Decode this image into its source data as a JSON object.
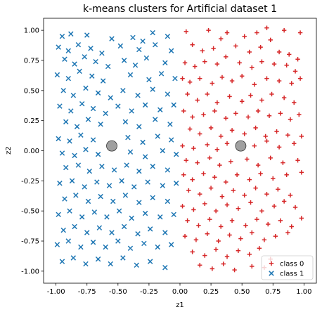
{
  "chart_data": {
    "type": "scatter",
    "title": "k-means clusters for Artificial dataset 1",
    "xlabel": "z1",
    "ylabel": "z2",
    "xlim": [
      -1.1,
      1.1
    ],
    "ylim": [
      -1.1,
      1.1
    ],
    "xticks": [
      "-1.00",
      "-0.75",
      "-0.50",
      "-0.25",
      "0.00",
      "0.25",
      "0.50",
      "0.75",
      "1.00"
    ],
    "yticks": [
      "1.00",
      "0.75",
      "0.50",
      "0.25",
      "0.00",
      "-0.25",
      "-0.50",
      "-0.75",
      "-1.00"
    ],
    "grid": false,
    "legend_position": "lower-right",
    "series": [
      {
        "name": "class 0",
        "marker": "plus",
        "color": "#d62728",
        "points": [
          [
            0.05,
            0.99
          ],
          [
            0.23,
            1.0
          ],
          [
            0.38,
            0.98
          ],
          [
            0.52,
            0.95
          ],
          [
            0.62,
            0.98
          ],
          [
            0.7,
            1.02
          ],
          [
            0.84,
            1.0
          ],
          [
            0.97,
            0.98
          ],
          [
            0.1,
            0.88
          ],
          [
            0.18,
            0.83
          ],
          [
            0.27,
            0.85
          ],
          [
            0.33,
            0.93
          ],
          [
            0.45,
            0.87
          ],
          [
            0.56,
            0.82
          ],
          [
            0.65,
            0.86
          ],
          [
            0.73,
            0.92
          ],
          [
            0.8,
            0.82
          ],
          [
            0.88,
            0.8
          ],
          [
            0.95,
            0.76
          ],
          [
            0.04,
            0.73
          ],
          [
            0.12,
            0.7
          ],
          [
            0.2,
            0.74
          ],
          [
            0.3,
            0.72
          ],
          [
            0.37,
            0.78
          ],
          [
            0.48,
            0.73
          ],
          [
            0.58,
            0.69
          ],
          [
            0.66,
            0.74
          ],
          [
            0.76,
            0.72
          ],
          [
            0.86,
            0.71
          ],
          [
            0.93,
            0.66
          ],
          [
            0.02,
            0.6
          ],
          [
            0.08,
            0.57
          ],
          [
            0.16,
            0.6
          ],
          [
            0.26,
            0.56
          ],
          [
            0.34,
            0.61
          ],
          [
            0.42,
            0.58
          ],
          [
            0.5,
            0.62
          ],
          [
            0.6,
            0.55
          ],
          [
            0.7,
            0.6
          ],
          [
            0.8,
            0.58
          ],
          [
            0.9,
            0.56
          ],
          [
            0.97,
            0.6
          ],
          [
            0.06,
            0.47
          ],
          [
            0.14,
            0.42
          ],
          [
            0.22,
            0.47
          ],
          [
            0.3,
            0.4
          ],
          [
            0.4,
            0.45
          ],
          [
            0.5,
            0.41
          ],
          [
            0.57,
            0.46
          ],
          [
            0.66,
            0.42
          ],
          [
            0.74,
            0.47
          ],
          [
            0.84,
            0.44
          ],
          [
            0.92,
            0.4
          ],
          [
            0.03,
            0.33
          ],
          [
            0.1,
            0.28
          ],
          [
            0.19,
            0.3
          ],
          [
            0.28,
            0.33
          ],
          [
            0.37,
            0.27
          ],
          [
            0.45,
            0.31
          ],
          [
            0.55,
            0.28
          ],
          [
            0.63,
            0.33
          ],
          [
            0.72,
            0.29
          ],
          [
            0.81,
            0.31
          ],
          [
            0.89,
            0.26
          ],
          [
            0.96,
            0.3
          ],
          [
            0.08,
            0.18
          ],
          [
            0.16,
            0.14
          ],
          [
            0.25,
            0.19
          ],
          [
            0.33,
            0.12
          ],
          [
            0.42,
            0.17
          ],
          [
            0.52,
            0.14
          ],
          [
            0.61,
            0.19
          ],
          [
            0.69,
            0.12
          ],
          [
            0.78,
            0.16
          ],
          [
            0.87,
            0.13
          ],
          [
            0.98,
            0.12
          ],
          [
            0.02,
            0.04
          ],
          [
            0.11,
            0.02
          ],
          [
            0.22,
            0.05
          ],
          [
            0.3,
            0.01
          ],
          [
            0.38,
            0.06
          ],
          [
            0.6,
            0.04
          ],
          [
            0.7,
            0.08
          ],
          [
            0.8,
            0.03
          ],
          [
            0.92,
            0.06
          ],
          [
            0.05,
            -0.08
          ],
          [
            0.14,
            -0.1
          ],
          [
            0.24,
            -0.06
          ],
          [
            0.32,
            -0.12
          ],
          [
            0.41,
            -0.09
          ],
          [
            0.54,
            -0.07
          ],
          [
            0.63,
            -0.12
          ],
          [
            0.73,
            -0.06
          ],
          [
            0.83,
            -0.1
          ],
          [
            0.95,
            -0.08
          ],
          [
            0.03,
            -0.2
          ],
          [
            0.1,
            -0.24
          ],
          [
            0.19,
            -0.19
          ],
          [
            0.28,
            -0.22
          ],
          [
            0.37,
            -0.26
          ],
          [
            0.46,
            -0.2
          ],
          [
            0.56,
            -0.24
          ],
          [
            0.65,
            -0.19
          ],
          [
            0.75,
            -0.23
          ],
          [
            0.86,
            -0.2
          ],
          [
            0.98,
            -0.18
          ],
          [
            0.07,
            -0.33
          ],
          [
            0.16,
            -0.36
          ],
          [
            0.25,
            -0.31
          ],
          [
            0.34,
            -0.38
          ],
          [
            0.43,
            -0.33
          ],
          [
            0.52,
            -0.37
          ],
          [
            0.61,
            -0.31
          ],
          [
            0.7,
            -0.36
          ],
          [
            0.79,
            -0.32
          ],
          [
            0.89,
            -0.37
          ],
          [
            0.02,
            -0.46
          ],
          [
            0.11,
            -0.49
          ],
          [
            0.2,
            -0.44
          ],
          [
            0.29,
            -0.5
          ],
          [
            0.38,
            -0.45
          ],
          [
            0.47,
            -0.48
          ],
          [
            0.57,
            -0.43
          ],
          [
            0.66,
            -0.5
          ],
          [
            0.76,
            -0.46
          ],
          [
            0.84,
            -0.42
          ],
          [
            0.93,
            -0.47
          ],
          [
            0.06,
            -0.58
          ],
          [
            0.15,
            -0.62
          ],
          [
            0.24,
            -0.57
          ],
          [
            0.33,
            -0.63
          ],
          [
            0.42,
            -0.58
          ],
          [
            0.53,
            -0.62
          ],
          [
            0.62,
            -0.57
          ],
          [
            0.71,
            -0.61
          ],
          [
            0.81,
            -0.58
          ],
          [
            0.9,
            -0.63
          ],
          [
            0.98,
            -0.56
          ],
          [
            0.04,
            -0.71
          ],
          [
            0.13,
            -0.74
          ],
          [
            0.22,
            -0.69
          ],
          [
            0.31,
            -0.75
          ],
          [
            0.4,
            -0.7
          ],
          [
            0.49,
            -0.73
          ],
          [
            0.58,
            -0.68
          ],
          [
            0.68,
            -0.74
          ],
          [
            0.77,
            -0.71
          ],
          [
            0.87,
            -0.68
          ],
          [
            0.1,
            -0.84
          ],
          [
            0.2,
            -0.87
          ],
          [
            0.29,
            -0.82
          ],
          [
            0.38,
            -0.88
          ],
          [
            0.47,
            -0.83
          ],
          [
            0.56,
            -0.86
          ],
          [
            0.64,
            -0.81
          ],
          [
            0.73,
            -0.9
          ],
          [
            0.16,
            -0.95
          ],
          [
            0.26,
            -0.98
          ],
          [
            0.35,
            -0.94
          ],
          [
            0.44,
            -0.99
          ],
          [
            0.58,
            -0.96
          ],
          [
            0.68,
            -0.97
          ]
        ]
      },
      {
        "name": "class 1",
        "marker": "x",
        "color": "#1f77b4",
        "points": [
          [
            -0.95,
            0.95
          ],
          [
            -0.88,
            0.97
          ],
          [
            -0.75,
            0.96
          ],
          [
            -0.55,
            0.93
          ],
          [
            -0.38,
            0.94
          ],
          [
            -0.3,
            0.91
          ],
          [
            -0.22,
            0.98
          ],
          [
            -0.1,
            0.95
          ],
          [
            -0.98,
            0.86
          ],
          [
            -0.9,
            0.83
          ],
          [
            -0.82,
            0.88
          ],
          [
            -0.72,
            0.85
          ],
          [
            -0.63,
            0.81
          ],
          [
            -0.48,
            0.87
          ],
          [
            -0.33,
            0.84
          ],
          [
            -0.2,
            0.88
          ],
          [
            -0.07,
            0.83
          ],
          [
            -0.93,
            0.76
          ],
          [
            -0.85,
            0.72
          ],
          [
            -0.77,
            0.78
          ],
          [
            -0.68,
            0.74
          ],
          [
            -0.58,
            0.7
          ],
          [
            -0.45,
            0.75
          ],
          [
            -0.36,
            0.71
          ],
          [
            -0.27,
            0.77
          ],
          [
            -0.12,
            0.73
          ],
          [
            -0.99,
            0.63
          ],
          [
            -0.9,
            0.6
          ],
          [
            -0.81,
            0.66
          ],
          [
            -0.71,
            0.62
          ],
          [
            -0.62,
            0.58
          ],
          [
            -0.4,
            0.63
          ],
          [
            -0.25,
            0.59
          ],
          [
            -0.15,
            0.64
          ],
          [
            -0.04,
            0.6
          ],
          [
            -0.94,
            0.5
          ],
          [
            -0.86,
            0.46
          ],
          [
            -0.76,
            0.52
          ],
          [
            -0.66,
            0.48
          ],
          [
            -0.56,
            0.44
          ],
          [
            -0.46,
            0.5
          ],
          [
            -0.34,
            0.46
          ],
          [
            -0.22,
            0.51
          ],
          [
            -0.1,
            0.47
          ],
          [
            -0.97,
            0.37
          ],
          [
            -0.88,
            0.33
          ],
          [
            -0.79,
            0.39
          ],
          [
            -0.7,
            0.35
          ],
          [
            -0.6,
            0.31
          ],
          [
            -0.5,
            0.37
          ],
          [
            -0.39,
            0.33
          ],
          [
            -0.28,
            0.38
          ],
          [
            -0.16,
            0.34
          ],
          [
            -0.05,
            0.38
          ],
          [
            -0.92,
            0.24
          ],
          [
            -0.83,
            0.2
          ],
          [
            -0.74,
            0.26
          ],
          [
            -0.64,
            0.22
          ],
          [
            -0.44,
            0.24
          ],
          [
            -0.33,
            0.2
          ],
          [
            -0.2,
            0.26
          ],
          [
            -0.08,
            0.22
          ],
          [
            -0.98,
            0.1
          ],
          [
            -0.89,
            0.08
          ],
          [
            -0.8,
            0.13
          ],
          [
            -0.7,
            0.09
          ],
          [
            -0.42,
            0.11
          ],
          [
            -0.3,
            0.07
          ],
          [
            -0.18,
            0.12
          ],
          [
            -0.07,
            0.09
          ],
          [
            -0.95,
            -0.02
          ],
          [
            -0.85,
            -0.04
          ],
          [
            -0.76,
            0.01
          ],
          [
            -0.66,
            -0.03
          ],
          [
            -0.4,
            -0.01
          ],
          [
            -0.28,
            -0.05
          ],
          [
            -0.14,
            0.0
          ],
          [
            -0.03,
            -0.03
          ],
          [
            -0.92,
            -0.14
          ],
          [
            -0.82,
            -0.12
          ],
          [
            -0.73,
            -0.17
          ],
          [
            -0.63,
            -0.13
          ],
          [
            -0.53,
            -0.16
          ],
          [
            -0.43,
            -0.12
          ],
          [
            -0.33,
            -0.17
          ],
          [
            -0.22,
            -0.13
          ],
          [
            -0.1,
            -0.16
          ],
          [
            -0.97,
            -0.27
          ],
          [
            -0.87,
            -0.25
          ],
          [
            -0.77,
            -0.3
          ],
          [
            -0.67,
            -0.26
          ],
          [
            -0.57,
            -0.29
          ],
          [
            -0.47,
            -0.25
          ],
          [
            -0.37,
            -0.3
          ],
          [
            -0.26,
            -0.26
          ],
          [
            -0.14,
            -0.29
          ],
          [
            -0.03,
            -0.27
          ],
          [
            -0.93,
            -0.4
          ],
          [
            -0.84,
            -0.37
          ],
          [
            -0.74,
            -0.42
          ],
          [
            -0.64,
            -0.38
          ],
          [
            -0.54,
            -0.42
          ],
          [
            -0.44,
            -0.37
          ],
          [
            -0.33,
            -0.43
          ],
          [
            -0.22,
            -0.39
          ],
          [
            -0.1,
            -0.42
          ],
          [
            -0.98,
            -0.53
          ],
          [
            -0.89,
            -0.5
          ],
          [
            -0.79,
            -0.55
          ],
          [
            -0.69,
            -0.51
          ],
          [
            -0.59,
            -0.55
          ],
          [
            -0.49,
            -0.5
          ],
          [
            -0.39,
            -0.56
          ],
          [
            -0.28,
            -0.52
          ],
          [
            -0.16,
            -0.55
          ],
          [
            -0.05,
            -0.53
          ],
          [
            -0.94,
            -0.66
          ],
          [
            -0.85,
            -0.63
          ],
          [
            -0.75,
            -0.68
          ],
          [
            -0.65,
            -0.64
          ],
          [
            -0.55,
            -0.68
          ],
          [
            -0.45,
            -0.63
          ],
          [
            -0.34,
            -0.69
          ],
          [
            -0.24,
            -0.65
          ],
          [
            -0.12,
            -0.68
          ],
          [
            -0.99,
            -0.78
          ],
          [
            -0.9,
            -0.75
          ],
          [
            -0.8,
            -0.8
          ],
          [
            -0.7,
            -0.76
          ],
          [
            -0.6,
            -0.8
          ],
          [
            -0.5,
            -0.75
          ],
          [
            -0.4,
            -0.81
          ],
          [
            -0.29,
            -0.77
          ],
          [
            -0.18,
            -0.8
          ],
          [
            -0.07,
            -0.78
          ],
          [
            -0.95,
            -0.92
          ],
          [
            -0.86,
            -0.89
          ],
          [
            -0.76,
            -0.94
          ],
          [
            -0.66,
            -0.9
          ],
          [
            -0.56,
            -0.94
          ],
          [
            -0.46,
            -0.89
          ],
          [
            -0.35,
            -0.95
          ],
          [
            -0.24,
            -0.92
          ],
          [
            -0.12,
            -0.97
          ]
        ]
      }
    ],
    "centroids": {
      "color": "#808080",
      "points": [
        [
          -0.55,
          0.04
        ],
        [
          0.49,
          0.04
        ]
      ]
    },
    "legend": [
      {
        "label": "class 0",
        "marker": "plus",
        "color": "#d62728"
      },
      {
        "label": "class 1",
        "marker": "x",
        "color": "#1f77b4"
      }
    ]
  }
}
